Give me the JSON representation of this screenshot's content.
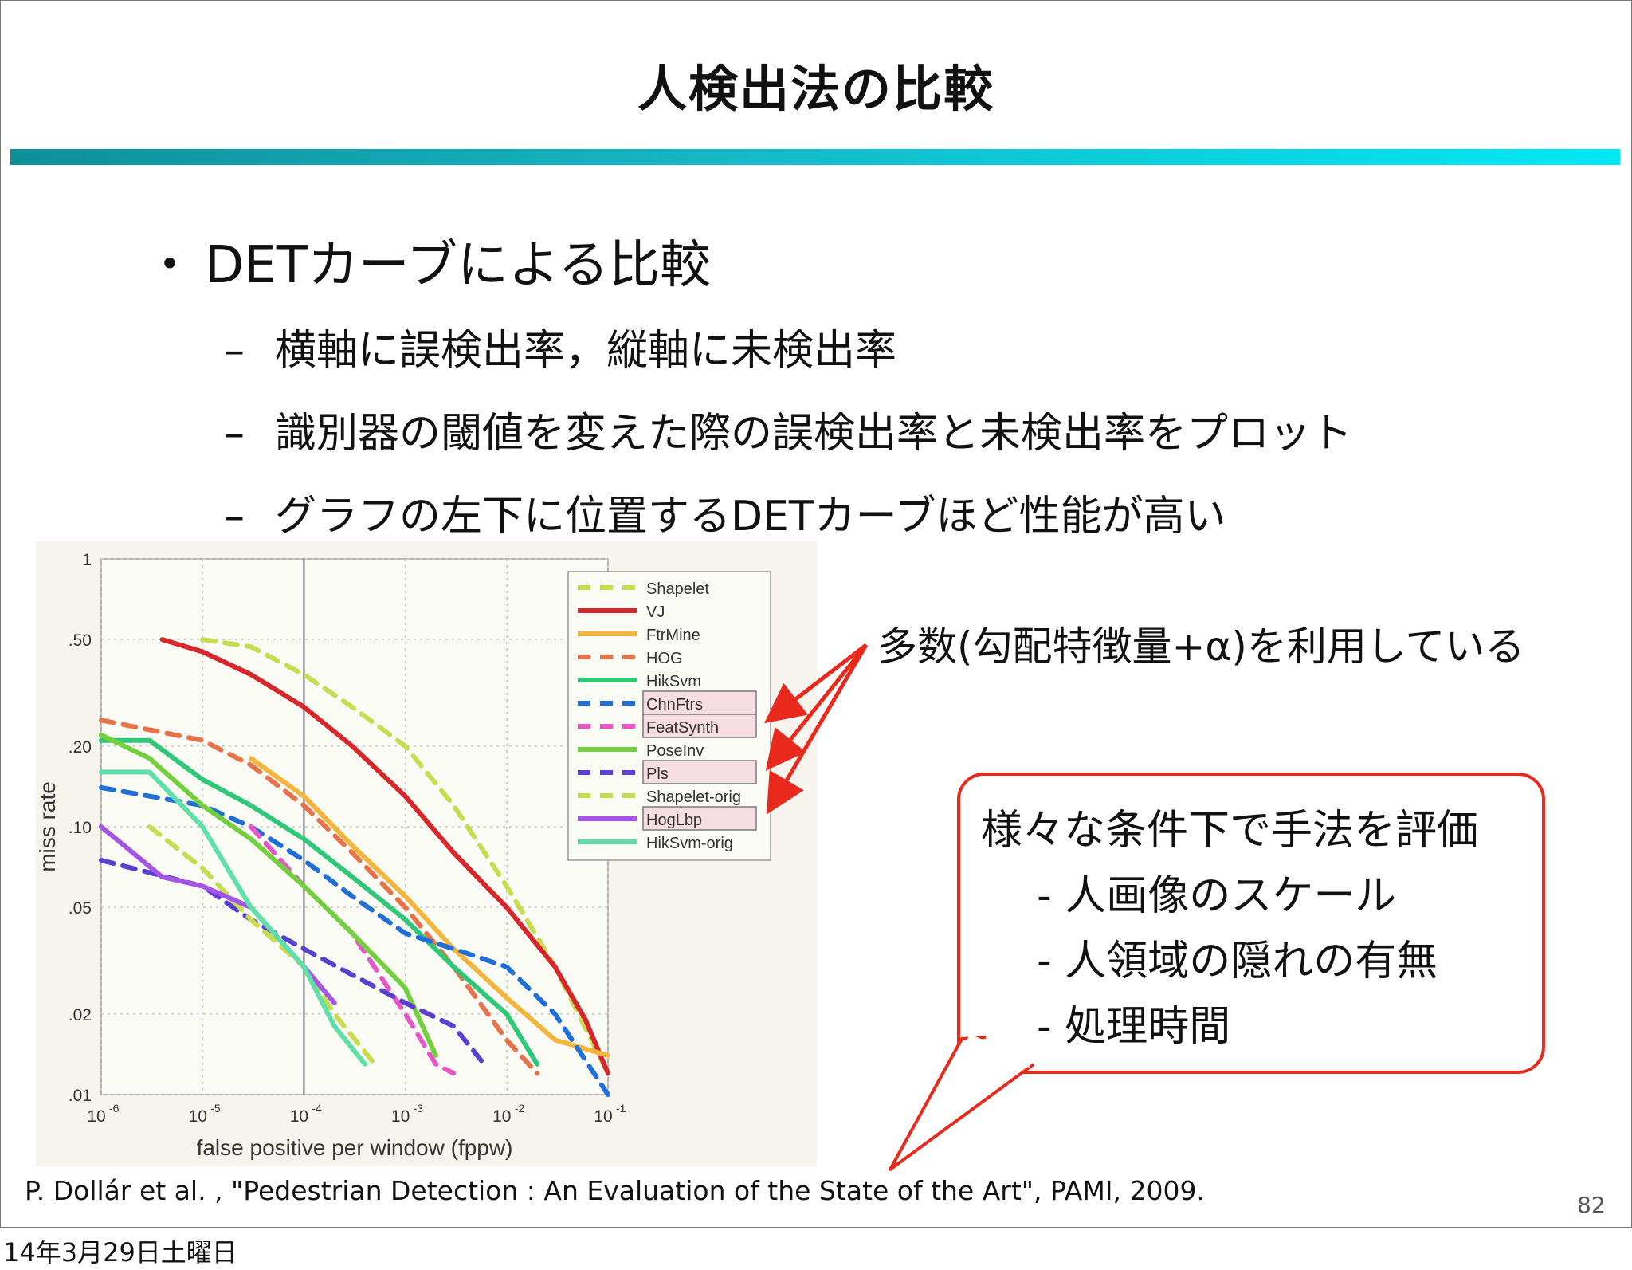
{
  "slide": {
    "title": "人検出法の比較",
    "bullet": "DETカーブによる比較",
    "bullet_marker": "・",
    "subs": [
      "横軸に誤検出率，縦軸に未検出率",
      "識別器の閾値を変えた際の誤検出率と未検出率をプロット",
      "グラフの左下に位置するDETカーブほど性能が高い"
    ],
    "sub_marker": "–",
    "annotation": "多数(勾配特徴量+α)を利用している",
    "callout": {
      "heading": "様々な条件下で手法を評価",
      "items": [
        "- 人画像のスケール",
        "- 人領域の隠れの有無",
        "- 処理時間"
      ]
    },
    "reference": "P. Dollár et al. , \"Pedestrian Detection : An Evaluation of the State of the Art\", PAMI, 2009.",
    "page_number": "82",
    "date_stamp": "14年3月29日土曜日",
    "colors": {
      "bar_start": "#0d8f9a",
      "bar_end": "#00e8f4",
      "callout_border": "#e8291c",
      "arrow": "#e8291c"
    }
  },
  "chart_data": {
    "type": "line",
    "xscale": "log",
    "yscale": "log",
    "xlabel": "false positive per window (fppw)",
    "ylabel": "miss rate",
    "xlim": [
      1e-06,
      0.1
    ],
    "ylim": [
      0.01,
      1
    ],
    "xticks": [
      {
        "v": 1e-06,
        "base": "10",
        "exp": "-6"
      },
      {
        "v": 1e-05,
        "base": "10",
        "exp": "-5"
      },
      {
        "v": 0.0001,
        "base": "10",
        "exp": "-4"
      },
      {
        "v": 0.001,
        "base": "10",
        "exp": "-3"
      },
      {
        "v": 0.01,
        "base": "10",
        "exp": "-2"
      },
      {
        "v": 0.1,
        "base": "10",
        "exp": "-1"
      }
    ],
    "yticks": [
      {
        "v": 1,
        "label": "1"
      },
      {
        "v": 0.5,
        "label": ".50"
      },
      {
        "v": 0.2,
        "label": ".20"
      },
      {
        "v": 0.1,
        "label": ".10"
      },
      {
        "v": 0.05,
        "label": ".05"
      },
      {
        "v": 0.02,
        "label": ".02"
      },
      {
        "v": 0.01,
        "label": ".01"
      }
    ],
    "vline_x": 0.0001,
    "grid": true,
    "legend_position": "top-right",
    "highlighted": [
      "ChnFtrs",
      "FeatSynth",
      "Pls",
      "HogLbp"
    ],
    "series": [
      {
        "name": "Shapelet",
        "color": "#c8dc50",
        "dash": true,
        "points": [
          [
            1e-05,
            0.5
          ],
          [
            3e-05,
            0.47
          ],
          [
            0.0001,
            0.37
          ],
          [
            0.0003,
            0.28
          ],
          [
            0.001,
            0.2
          ],
          [
            0.003,
            0.12
          ],
          [
            0.01,
            0.06
          ],
          [
            0.03,
            0.03
          ],
          [
            0.1,
            0.012
          ]
        ]
      },
      {
        "name": "VJ",
        "color": "#d9262a",
        "dash": false,
        "points": [
          [
            4e-06,
            0.5
          ],
          [
            1e-05,
            0.45
          ],
          [
            3e-05,
            0.37
          ],
          [
            0.0001,
            0.28
          ],
          [
            0.0003,
            0.2
          ],
          [
            0.001,
            0.13
          ],
          [
            0.003,
            0.08
          ],
          [
            0.01,
            0.05
          ],
          [
            0.03,
            0.03
          ],
          [
            0.06,
            0.019
          ],
          [
            0.1,
            0.012
          ]
        ]
      },
      {
        "name": "FtrMine",
        "color": "#f5b53c",
        "dash": false,
        "points": [
          [
            3e-05,
            0.18
          ],
          [
            0.0001,
            0.13
          ],
          [
            0.0003,
            0.085
          ],
          [
            0.001,
            0.055
          ],
          [
            0.003,
            0.035
          ],
          [
            0.01,
            0.023
          ],
          [
            0.03,
            0.016
          ],
          [
            0.1,
            0.014
          ]
        ]
      },
      {
        "name": "HOG",
        "color": "#e8734a",
        "dash": true,
        "points": [
          [
            1e-06,
            0.25
          ],
          [
            1e-05,
            0.21
          ],
          [
            3e-05,
            0.17
          ],
          [
            0.0001,
            0.12
          ],
          [
            0.0003,
            0.08
          ],
          [
            0.001,
            0.05
          ],
          [
            0.003,
            0.03
          ],
          [
            0.01,
            0.016
          ],
          [
            0.02,
            0.012
          ]
        ]
      },
      {
        "name": "HikSvm",
        "color": "#2ec878",
        "dash": false,
        "points": [
          [
            1e-06,
            0.21
          ],
          [
            3e-06,
            0.21
          ],
          [
            1e-05,
            0.15
          ],
          [
            3e-05,
            0.12
          ],
          [
            0.0001,
            0.09
          ],
          [
            0.0003,
            0.065
          ],
          [
            0.001,
            0.045
          ],
          [
            0.003,
            0.03
          ],
          [
            0.01,
            0.02
          ],
          [
            0.02,
            0.013
          ]
        ]
      },
      {
        "name": "ChnFtrs",
        "color": "#1f6fd8",
        "dash": true,
        "points": [
          [
            1e-06,
            0.14
          ],
          [
            1e-05,
            0.12
          ],
          [
            3e-05,
            0.1
          ],
          [
            0.0001,
            0.075
          ],
          [
            0.0003,
            0.055
          ],
          [
            0.001,
            0.04
          ],
          [
            0.003,
            0.035
          ],
          [
            0.01,
            0.03
          ],
          [
            0.03,
            0.02
          ],
          [
            0.1,
            0.01
          ]
        ]
      },
      {
        "name": "FeatSynth",
        "color": "#e856c8",
        "dash": true,
        "points": [
          [
            3e-05,
            0.1
          ],
          [
            0.0001,
            0.06
          ],
          [
            0.0003,
            0.04
          ],
          [
            0.001,
            0.02
          ],
          [
            0.002,
            0.013
          ],
          [
            0.003,
            0.012
          ]
        ]
      },
      {
        "name": "PoseInv",
        "color": "#72d03c",
        "dash": false,
        "points": [
          [
            1e-06,
            0.22
          ],
          [
            3e-06,
            0.18
          ],
          [
            1e-05,
            0.12
          ],
          [
            3e-05,
            0.09
          ],
          [
            0.0001,
            0.06
          ],
          [
            0.0003,
            0.04
          ],
          [
            0.001,
            0.025
          ],
          [
            0.002,
            0.014
          ]
        ]
      },
      {
        "name": "Pls",
        "color": "#5a3fd0",
        "dash": true,
        "points": [
          [
            1e-06,
            0.075
          ],
          [
            1e-05,
            0.06
          ],
          [
            3e-05,
            0.045
          ],
          [
            0.0001,
            0.035
          ],
          [
            0.0003,
            0.028
          ],
          [
            0.001,
            0.022
          ],
          [
            0.003,
            0.018
          ],
          [
            0.006,
            0.013
          ]
        ]
      },
      {
        "name": "Shapelet-orig",
        "color": "#c8dc50",
        "dash": true,
        "points": [
          [
            3e-06,
            0.1
          ],
          [
            1e-05,
            0.07
          ],
          [
            3e-05,
            0.045
          ],
          [
            0.0001,
            0.03
          ],
          [
            0.0002,
            0.02
          ],
          [
            0.0005,
            0.013
          ]
        ]
      },
      {
        "name": "HogLbp",
        "color": "#a555e6",
        "dash": false,
        "points": [
          [
            1e-06,
            0.1
          ],
          [
            4e-06,
            0.065
          ],
          [
            1e-05,
            0.06
          ],
          [
            3e-05,
            0.05
          ],
          [
            0.0001,
            0.03
          ],
          [
            0.0002,
            0.022
          ]
        ]
      },
      {
        "name": "HikSvm-orig",
        "color": "#5ee0a8",
        "dash": false,
        "points": [
          [
            1e-06,
            0.16
          ],
          [
            3e-06,
            0.16
          ],
          [
            1e-05,
            0.1
          ],
          [
            3e-05,
            0.05
          ],
          [
            0.0001,
            0.03
          ],
          [
            0.0002,
            0.018
          ],
          [
            0.0004,
            0.013
          ]
        ]
      }
    ]
  }
}
